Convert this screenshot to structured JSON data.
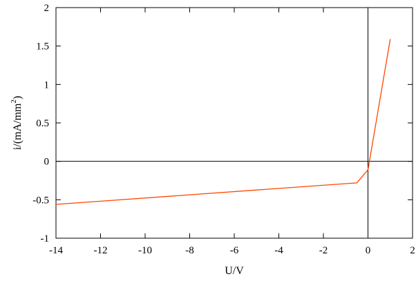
{
  "chart_data": {
    "type": "line",
    "title": "",
    "xlabel": "U/V",
    "ylabel_main": "i/(mA/mm",
    "ylabel_sup": "2",
    "ylabel_close": ")",
    "xlim": [
      -14,
      2
    ],
    "ylim": [
      -1,
      2
    ],
    "xticks": [
      -14,
      -12,
      -10,
      -8,
      -6,
      -4,
      -2,
      0,
      2
    ],
    "xtick_labels": [
      "-14",
      "-12",
      "-10",
      "-8",
      "-6",
      "-4",
      "-2",
      "0",
      "2"
    ],
    "yticks": [
      -1,
      -0.5,
      0,
      0.5,
      1,
      1.5,
      2
    ],
    "ytick_labels": [
      "-1",
      "-0.5",
      "0",
      "0.5",
      "1",
      "1.5",
      "2"
    ],
    "grid": false,
    "zero_lines": true,
    "series": [
      {
        "color": "#ff4500",
        "x": [
          -14,
          -0.5,
          0,
          1
        ],
        "y": [
          -0.56,
          -0.28,
          -0.11,
          1.59
        ]
      }
    ]
  }
}
